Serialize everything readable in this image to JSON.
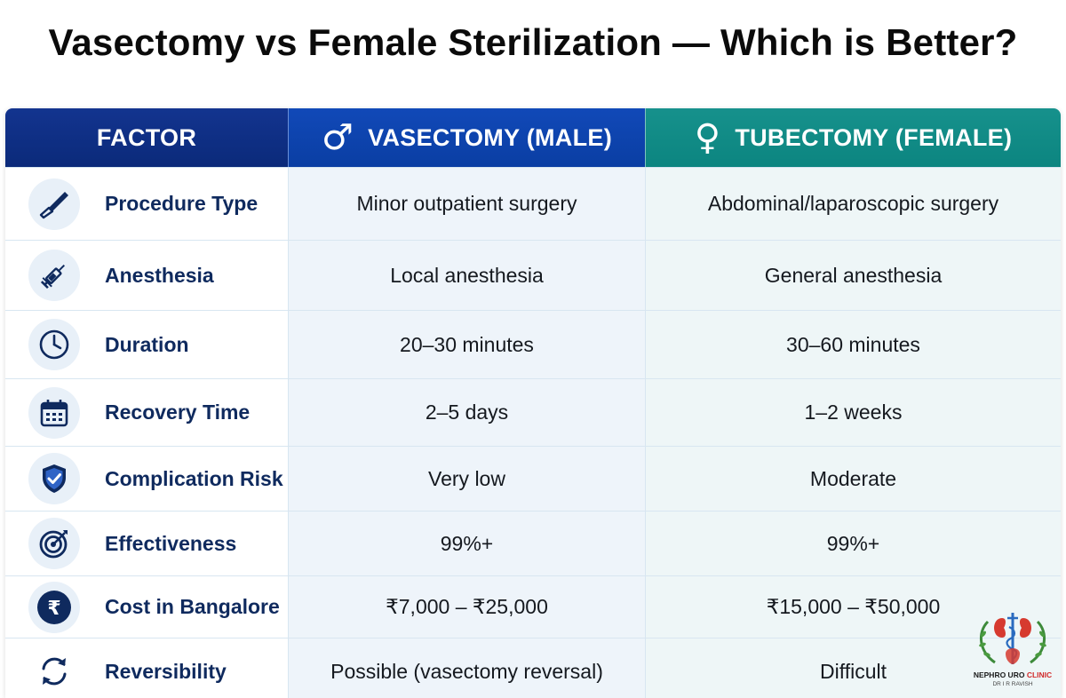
{
  "title": "Vasectomy vs Female Sterilization — Which is Better?",
  "header": {
    "factor": "FACTOR",
    "male": "VASECTOMY (MALE)",
    "male_icon": "male-symbol-icon",
    "female": "TUBECTOMY (FEMALE)",
    "female_icon": "female-symbol-icon"
  },
  "rows": [
    {
      "icon": "scalpel-icon",
      "factor": "Procedure Type",
      "male": "Minor outpatient surgery",
      "female": "Abdominal/laparoscopic surgery"
    },
    {
      "icon": "syringe-icon",
      "factor": "Anesthesia",
      "male": "Local anesthesia",
      "female": "General anesthesia"
    },
    {
      "icon": "clock-icon",
      "factor": "Duration",
      "male": "20–30 minutes",
      "female": "30–60 minutes"
    },
    {
      "icon": "calendar-icon",
      "factor": "Recovery Time",
      "male": "2–5 days",
      "female": "1–2 weeks"
    },
    {
      "icon": "shield-check-icon",
      "factor": "Complication Risk",
      "male": "Very low",
      "female": "Moderate"
    },
    {
      "icon": "target-icon",
      "factor": "Effectiveness",
      "male": "99%+",
      "female": "99%+"
    },
    {
      "icon": "rupee-icon",
      "factor": "Cost in Bangalore",
      "male": "₹7,000 – ₹25,000",
      "female": "₹15,000 – ₹50,000"
    },
    {
      "icon": "refresh-cycle-icon",
      "factor": "Reversibility",
      "male": "Possible (vasectomy reversal)",
      "female": "Difficult"
    }
  ],
  "logo": {
    "name_part1": "NEPHRO URO",
    "name_part2": "CLINIC",
    "subtitle": "DR I R RAVISH"
  },
  "colors": {
    "factor_header": "#0b2a7a",
    "male_header": "#0a3ea3",
    "female_header": "#0c8580",
    "icon_navy": "#0f2a5e"
  }
}
